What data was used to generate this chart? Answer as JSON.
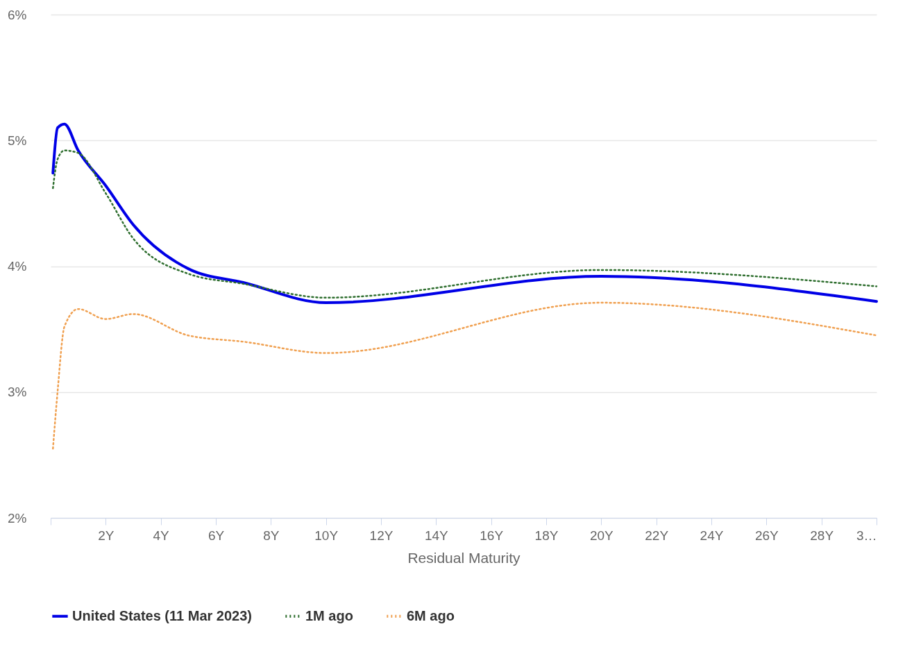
{
  "chart_data": {
    "type": "line",
    "xlabel": "Residual Maturity",
    "xlim": [
      0,
      30
    ],
    "xticks": [
      {
        "value": 0,
        "label": null
      },
      {
        "value": 2,
        "label": "2Y"
      },
      {
        "value": 4,
        "label": "4Y"
      },
      {
        "value": 6,
        "label": "6Y"
      },
      {
        "value": 8,
        "label": "8Y"
      },
      {
        "value": 10,
        "label": "10Y"
      },
      {
        "value": 12,
        "label": "12Y"
      },
      {
        "value": 14,
        "label": "14Y"
      },
      {
        "value": 16,
        "label": "16Y"
      },
      {
        "value": 18,
        "label": "18Y"
      },
      {
        "value": 20,
        "label": "20Y"
      },
      {
        "value": 22,
        "label": "22Y"
      },
      {
        "value": 24,
        "label": "24Y"
      },
      {
        "value": 26,
        "label": "26Y"
      },
      {
        "value": 28,
        "label": "28Y"
      },
      {
        "value": 30,
        "label": "3…"
      }
    ],
    "ylim": [
      2,
      6
    ],
    "yticks": [
      {
        "value": 2,
        "label": "2%"
      },
      {
        "value": 3,
        "label": "3%"
      },
      {
        "value": 4,
        "label": "4%"
      },
      {
        "value": 5,
        "label": "5%"
      },
      {
        "value": 6,
        "label": "6%"
      }
    ],
    "grid": "y",
    "legend": "bottom",
    "series": [
      {
        "name": "United States (11 Mar 2023)",
        "color": "#0000e6",
        "line_style": "solid",
        "x": [
          0.083,
          0.25,
          0.5,
          1,
          2,
          3,
          5,
          7,
          10,
          20,
          30
        ],
        "values": [
          4.74,
          5.1,
          5.13,
          4.92,
          4.64,
          4.33,
          3.98,
          3.87,
          3.71,
          3.92,
          3.72
        ]
      },
      {
        "name": "1M ago",
        "color": "#2e6e2e",
        "line_style": "dotted",
        "x": [
          0.083,
          0.25,
          0.5,
          1,
          2,
          3,
          5,
          7,
          10,
          20,
          30
        ],
        "values": [
          4.62,
          4.85,
          4.92,
          4.9,
          4.58,
          4.22,
          3.94,
          3.86,
          3.75,
          3.97,
          3.84
        ]
      },
      {
        "name": "6M ago",
        "color": "#f0a050",
        "line_style": "dotted",
        "x": [
          0.083,
          0.25,
          0.5,
          1,
          2,
          3,
          5,
          7,
          10,
          20,
          30
        ],
        "values": [
          2.55,
          3.0,
          3.52,
          3.66,
          3.58,
          3.62,
          3.45,
          3.4,
          3.31,
          3.71,
          3.45
        ]
      }
    ]
  }
}
